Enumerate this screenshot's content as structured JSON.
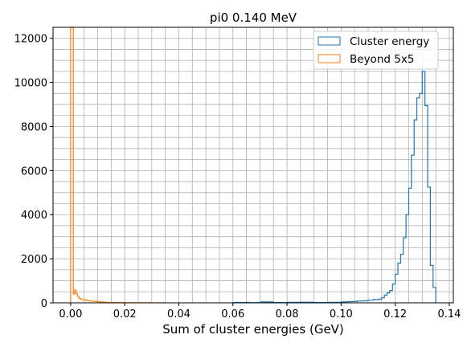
{
  "chart_data": {
    "type": "histogram",
    "title": "pi0 0.140 MeV",
    "xlabel": "Sum of cluster energies (GeV)",
    "ylabel": "",
    "xlim": [
      -0.0065,
      0.1415
    ],
    "ylim": [
      0,
      12500
    ],
    "grid": true,
    "legend_position": "top-right",
    "x_ticks": [
      "0.00",
      "0.02",
      "0.04",
      "0.06",
      "0.08",
      "0.10",
      "0.12",
      "0.14"
    ],
    "y_ticks": [
      "0",
      "2000",
      "4000",
      "6000",
      "8000",
      "10000",
      "12000"
    ],
    "x_tick_values": [
      0,
      0.02,
      0.04,
      0.06,
      0.08,
      0.1,
      0.12,
      0.14
    ],
    "y_tick_values": [
      0,
      2000,
      4000,
      6000,
      8000,
      10000,
      12000
    ],
    "series": [
      {
        "name": "Cluster energy",
        "color": "#1f77b4",
        "points": [
          [
            0.06,
            15
          ],
          [
            0.065,
            25
          ],
          [
            0.066,
            10
          ],
          [
            0.07,
            40
          ],
          [
            0.075,
            15
          ],
          [
            0.08,
            25
          ],
          [
            0.085,
            30
          ],
          [
            0.09,
            15
          ],
          [
            0.095,
            25
          ],
          [
            0.1,
            40
          ],
          [
            0.102,
            50
          ],
          [
            0.104,
            60
          ],
          [
            0.106,
            80
          ],
          [
            0.108,
            90
          ],
          [
            0.11,
            120
          ],
          [
            0.112,
            150
          ],
          [
            0.114,
            170
          ],
          [
            0.115,
            230
          ],
          [
            0.116,
            350
          ],
          [
            0.117,
            450
          ],
          [
            0.118,
            560
          ],
          [
            0.119,
            850
          ],
          [
            0.12,
            1300
          ],
          [
            0.121,
            1800
          ],
          [
            0.122,
            2200
          ],
          [
            0.123,
            2950
          ],
          [
            0.124,
            4000
          ],
          [
            0.125,
            5200
          ],
          [
            0.126,
            6700
          ],
          [
            0.127,
            8300
          ],
          [
            0.128,
            9300
          ],
          [
            0.129,
            9500
          ],
          [
            0.13,
            10500
          ],
          [
            0.131,
            8950
          ],
          [
            0.132,
            5250
          ],
          [
            0.133,
            1700
          ],
          [
            0.134,
            700
          ],
          [
            0.135,
            0
          ]
        ]
      },
      {
        "name": "Beyond 5x5",
        "color": "#ff7f0e",
        "points": [
          [
            0.0,
            12500
          ],
          [
            0.001,
            400
          ],
          [
            0.0015,
            580
          ],
          [
            0.002,
            420
          ],
          [
            0.0025,
            300
          ],
          [
            0.003,
            220
          ],
          [
            0.0035,
            180
          ],
          [
            0.004,
            150
          ],
          [
            0.005,
            120
          ],
          [
            0.006,
            100
          ],
          [
            0.007,
            80
          ],
          [
            0.008,
            70
          ],
          [
            0.009,
            60
          ],
          [
            0.01,
            50
          ],
          [
            0.011,
            40
          ],
          [
            0.012,
            35
          ],
          [
            0.013,
            25
          ],
          [
            0.014,
            15
          ],
          [
            0.016,
            10
          ],
          [
            0.02,
            6
          ],
          [
            0.025,
            4
          ],
          [
            0.03,
            3
          ],
          [
            0.035,
            0
          ]
        ]
      }
    ]
  }
}
